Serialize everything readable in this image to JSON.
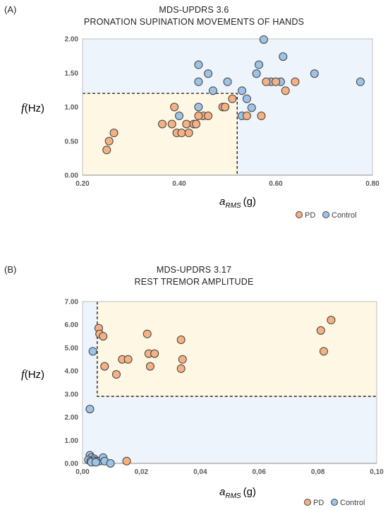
{
  "charts": [
    {
      "panel_label": "(A)",
      "title_lines": [
        "MDS-UPDRS 3.6",
        "PRONATION SUPINATION MOVEMENTS OF HANDS"
      ],
      "ylabel_main": "f",
      "ylabel_unit": "(Hz)",
      "xlabel_main": "a",
      "xlabel_sub": "RMS",
      "xlabel_unit": "(g)",
      "legend": [
        "PD",
        "Control"
      ]
    },
    {
      "panel_label": "(B)",
      "title_lines": [
        "MDS-UPDRS 3.17",
        "REST TREMOR AMPLITUDE"
      ],
      "ylabel_main": "f",
      "ylabel_unit": "(Hz)",
      "xlabel_main": "a",
      "xlabel_sub": "RMS",
      "xlabel_unit": "(g)",
      "legend": [
        "PD",
        "Control"
      ]
    }
  ],
  "colors": {
    "pd": "#f4b183",
    "control": "#9dc3e6",
    "pd_region": "#fdf7e4",
    "control_region": "#eef4fb",
    "marker_edge": "#404040"
  },
  "chart_data": [
    {
      "type": "scatter",
      "xlim": [
        0.2,
        0.8
      ],
      "ylim": [
        0,
        2
      ],
      "x_ticks": [
        "0.20",
        "0.40",
        "0.60",
        "0.80"
      ],
      "y_ticks": [
        "0.00",
        "0.50",
        "1.00",
        "1.50",
        "2.00"
      ],
      "threshold": {
        "x": 0.52,
        "y": 1.2
      },
      "grid": false,
      "legend_position": "bottom-right",
      "series": [
        {
          "name": "PD",
          "points": [
            [
              0.25,
              0.37
            ],
            [
              0.255,
              0.5
            ],
            [
              0.265,
              0.62
            ],
            [
              0.365,
              0.75
            ],
            [
              0.385,
              0.75
            ],
            [
              0.39,
              1.0
            ],
            [
              0.395,
              0.62
            ],
            [
              0.405,
              0.62
            ],
            [
              0.415,
              0.75
            ],
            [
              0.42,
              0.62
            ],
            [
              0.43,
              0.75
            ],
            [
              0.435,
              0.75
            ],
            [
              0.45,
              0.87
            ],
            [
              0.46,
              0.87
            ],
            [
              0.49,
              1.0
            ],
            [
              0.495,
              1.0
            ],
            [
              0.51,
              1.12
            ],
            [
              0.54,
              0.87
            ],
            [
              0.57,
              0.87
            ],
            [
              0.58,
              1.37
            ],
            [
              0.6,
              1.37
            ],
            [
              0.62,
              1.24
            ],
            [
              0.64,
              1.37
            ],
            [
              0.44,
              0.87
            ]
          ]
        },
        {
          "name": "Control",
          "points": [
            [
              0.4,
              0.87
            ],
            [
              0.44,
              1.62
            ],
            [
              0.44,
              1.37
            ],
            [
              0.46,
              1.49
            ],
            [
              0.47,
              1.24
            ],
            [
              0.5,
              1.37
            ],
            [
              0.53,
              1.24
            ],
            [
              0.54,
              1.12
            ],
            [
              0.55,
              0.99
            ],
            [
              0.56,
              1.49
            ],
            [
              0.565,
              1.62
            ],
            [
              0.575,
              1.99
            ],
            [
              0.59,
              1.37
            ],
            [
              0.61,
              1.37
            ],
            [
              0.615,
              1.74
            ],
            [
              0.68,
              1.49
            ],
            [
              0.775,
              1.37
            ],
            [
              0.53,
              0.87
            ],
            [
              0.44,
              1.0
            ]
          ]
        }
      ]
    },
    {
      "type": "scatter",
      "xlim": [
        0,
        0.1
      ],
      "ylim": [
        0,
        7
      ],
      "x_ticks": [
        "0,00",
        "0,02",
        "0,04",
        "0,06",
        "0,08",
        "0,10"
      ],
      "y_ticks": [
        "0.00",
        "1.00",
        "2.00",
        "3.00",
        "4.00",
        "5.00",
        "6.00",
        "7.00"
      ],
      "threshold": {
        "x": 0.005,
        "y": 2.9
      },
      "grid": false,
      "legend_position": "bottom-right",
      "series": [
        {
          "name": "PD",
          "points": [
            [
              0.0055,
              5.85
            ],
            [
              0.0058,
              5.6
            ],
            [
              0.007,
              5.5
            ],
            [
              0.0075,
              4.2
            ],
            [
              0.0115,
              3.85
            ],
            [
              0.0135,
              4.5
            ],
            [
              0.0155,
              4.5
            ],
            [
              0.022,
              5.6
            ],
            [
              0.0225,
              4.75
            ],
            [
              0.023,
              4.2
            ],
            [
              0.0245,
              4.75
            ],
            [
              0.0335,
              5.35
            ],
            [
              0.0335,
              4.1
            ],
            [
              0.034,
              4.5
            ],
            [
              0.081,
              5.75
            ],
            [
              0.082,
              4.85
            ],
            [
              0.0845,
              6.2
            ],
            [
              0.015,
              0.1
            ]
          ]
        },
        {
          "name": "Control",
          "points": [
            [
              0.0035,
              4.85
            ],
            [
              0.0025,
              2.35
            ],
            [
              0.0025,
              0.35
            ],
            [
              0.003,
              0.25
            ],
            [
              0.004,
              0.2
            ],
            [
              0.002,
              0.15
            ],
            [
              0.0028,
              0.1
            ],
            [
              0.004,
              0.12
            ],
            [
              0.005,
              0.1
            ],
            [
              0.0058,
              0.1
            ],
            [
              0.007,
              0.25
            ],
            [
              0.0075,
              0.1
            ],
            [
              0.0095,
              0.0
            ],
            [
              0.003,
              0.05
            ],
            [
              0.0045,
              0.05
            ]
          ]
        }
      ]
    }
  ]
}
